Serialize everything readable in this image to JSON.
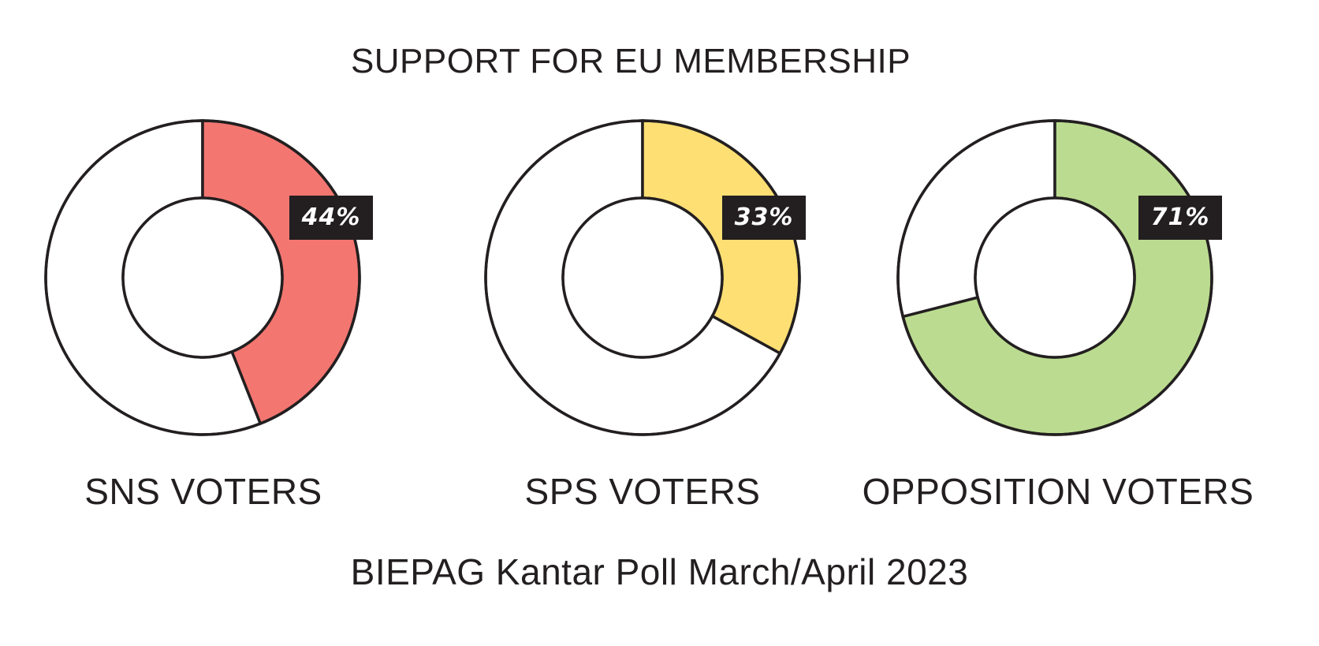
{
  "chart_data": {
    "type": "pie",
    "title": "SUPPORT FOR EU MEMBERSHIP",
    "subtitle": "",
    "source": "BIEPAG Kantar Poll March/April 2023",
    "donuts": [
      {
        "label": "SNS VOTERS",
        "value": 44,
        "value_label": "44%",
        "color": "#f47671"
      },
      {
        "label": "SPS VOTERS",
        "value": 33,
        "value_label": "33%",
        "color": "#fddf73"
      },
      {
        "label": "OPPOSITION VOTERS",
        "value": 71,
        "value_label": "71%",
        "color": "#bbdc90"
      }
    ],
    "remainder_color": "#ffffff",
    "outline_color": "#231f20",
    "badge_color": "#231f20"
  }
}
